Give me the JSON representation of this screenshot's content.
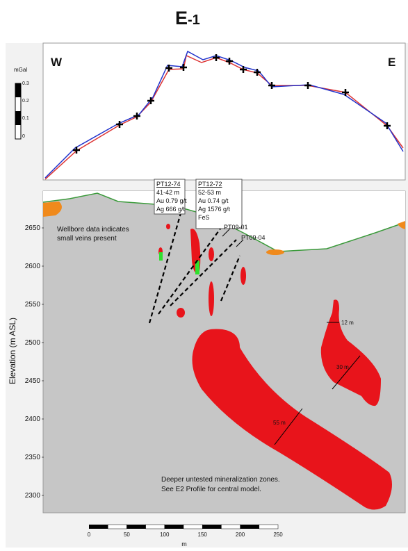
{
  "title": {
    "main": "E",
    "sub": "-1"
  },
  "gravity_panel": {
    "unit": "mGal",
    "scale_labels": [
      "0.3",
      "0.2",
      "0.1",
      "0"
    ],
    "west_label": "W",
    "east_label": "E"
  },
  "section": {
    "y_axis_label": "Elevation (m ASL)",
    "y_ticks": [
      "2650",
      "2600",
      "2550",
      "2500",
      "2450",
      "2400",
      "2350",
      "2300"
    ],
    "note_top": [
      "Wellbore data indicates",
      "small veins present"
    ],
    "callouts": [
      {
        "lines": [
          "PT12-74",
          "41-42 m",
          "Au 0.79 g/t",
          "Ag 666 g/t"
        ]
      },
      {
        "lines": [
          "PT12-72",
          "52-53 m",
          "Au 0.74 g/t",
          "Ag 1576 g/t",
          "FeS"
        ]
      }
    ],
    "hole_labels": [
      "PT09-01",
      "PT09-04"
    ],
    "widths": [
      "12 m",
      "30 m",
      "55 m"
    ],
    "note_bottom": [
      "Deeper untested mineralization zones.",
      "See E2 Profile for central model."
    ]
  },
  "scale_bar": {
    "ticks": [
      "0",
      "50",
      "100",
      "150",
      "200",
      "250"
    ],
    "unit": "m"
  }
}
